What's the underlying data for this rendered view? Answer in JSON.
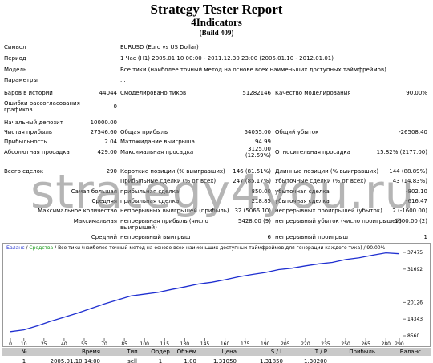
{
  "header": {
    "title": "Strategy Tester Report",
    "subtitle": "4Indicators",
    "build": "(Build 409)"
  },
  "info": [
    {
      "label": "Символ",
      "value": "EURUSD (Euro vs US Dollar)"
    },
    {
      "label": "Период",
      "value": "1 Час (H1) 2005.01.10 00:00 - 2011.12.30 23:00 (2005.01.10 - 2012.01.01)"
    },
    {
      "label": "Модель",
      "value": "Все тики (наиболее точный метод на основе всех наименьших доступных таймфреймов)"
    },
    {
      "label": "Параметры",
      "value": "..."
    }
  ],
  "stats": [
    {
      "c1": "Баров в истории",
      "v1": "44044",
      "c2": "Смоделировано тиков",
      "v2": "51282146",
      "c3": "Качество моделирования",
      "v3": "90.00%"
    },
    {
      "c1": "Ошибки рассогласования графиков",
      "v1": "0"
    },
    {
      "c1": "Начальный депозит",
      "v1": "10000.00"
    },
    {
      "c1": "Чистая прибыль",
      "v1": "27546.60",
      "c2": "Общая прибыль",
      "v2": "54055.00",
      "c3": "Общий убыток",
      "v3": "-26508.40"
    },
    {
      "c1": "Прибыльность",
      "v1": "2.04",
      "c2": "Матожидание выигрыша",
      "v2": "94.99"
    },
    {
      "c1": "Абсолютная просадка",
      "v1": "429.00",
      "c2": "Максимальная просадка",
      "v2": "3125.00 (12.59%)",
      "c3": "Относительная просадка",
      "v3": "15.82% (2177.00)"
    },
    {
      "c1": "Всего сделок",
      "v1": "290",
      "c2": "Короткие позиции (% выигравших)",
      "v2": "146 (81.51%)",
      "c3": "Длинные позиции (% выигравших)",
      "v3": "144 (88.89%)"
    },
    {
      "c2": "Прибыльные сделки (% от всех)",
      "v2": "247 (85.17%)",
      "c3": "Убыточные сделки (% от всех)",
      "v3": "43 (14.83%)"
    },
    {
      "c1": "Самая большая",
      "c2": "прибыльная сделка",
      "v2": "850.00",
      "c3": "убыточная сделка",
      "v3": "-802.10"
    },
    {
      "c1": "Средняя",
      "c2": "прибыльная сделка",
      "v2": "218.85",
      "c3": "убыточная сделка",
      "v3": "-616.47"
    },
    {
      "c1": "Максимальное количество",
      "c2": "непрерывных выигрышей (прибыль)",
      "v2": "32 (5066.10)",
      "c3": "непрерывных проигрышей (убыток)",
      "v3": "2 (-1600.00)"
    },
    {
      "c1": "Максимальная",
      "c2": "непрерывная прибыль (число выигрышей)",
      "v2": "5428.00 (9)",
      "c3": "непрерывный убыток (число проигрышей)",
      "v3": "-1600.00 (2)"
    },
    {
      "c1": "Средний",
      "c2": "непрерывный выигрыш",
      "v2": "6",
      "c3": "непрерывный проигрыш",
      "v3": "1"
    }
  ],
  "watermark": "strategy4you.ru",
  "chart": {
    "type": "line",
    "legend": [
      "Баланс",
      " / ",
      "Средства",
      " / Все тики (наиболее точный метод на основе всех наименьших доступных таймфреймов для генерации каждого тика) / 90.00%"
    ],
    "color": "#1f2fd0",
    "x": [
      0,
      10,
      20,
      30,
      40,
      50,
      60,
      70,
      80,
      90,
      100,
      110,
      120,
      130,
      140,
      150,
      160,
      170,
      180,
      190,
      200,
      210,
      220,
      230,
      240,
      250,
      260,
      270,
      280,
      290
    ],
    "values": [
      10000,
      10600,
      12000,
      13600,
      15000,
      16400,
      18000,
      19600,
      21000,
      22400,
      23000,
      23600,
      24600,
      25500,
      26500,
      27100,
      28000,
      29000,
      29800,
      30500,
      31500,
      32000,
      32800,
      33500,
      34000,
      35000,
      35600,
      36500,
      37300,
      37000
    ],
    "xlim": [
      0,
      290
    ],
    "ylim": [
      8560,
      37475
    ],
    "xticks": [
      0,
      10,
      25,
      40,
      55,
      70,
      85,
      100,
      115,
      130,
      145,
      160,
      175,
      190,
      205,
      220,
      235,
      250,
      265,
      280,
      290
    ],
    "yticks": [
      37475,
      31692,
      20126,
      14343,
      8560
    ]
  },
  "trades": {
    "header": [
      "№",
      "Время",
      "Тип",
      "Ордер",
      "Объём",
      "Цена",
      "S / L",
      "T / P",
      "Прибыль",
      "Баланс"
    ],
    "rows": [
      [
        "1",
        "2005.01.10 14:00",
        "sell",
        "1",
        "1.00",
        "1.31050",
        "1.31850",
        "1.30200"
      ]
    ]
  }
}
